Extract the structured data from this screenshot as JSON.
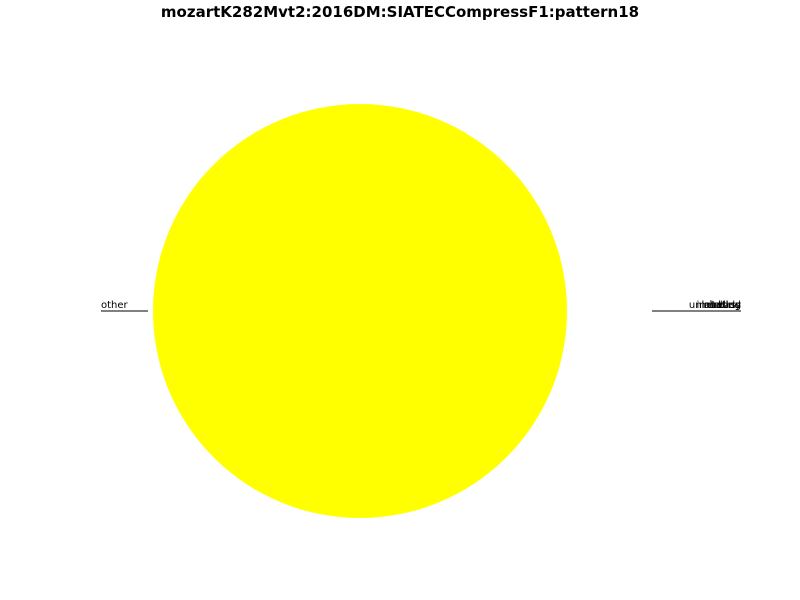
{
  "chart_data": {
    "type": "pie",
    "title": "mozartK282Mvt2:2016DM:SIATECCompressF1:pattern18",
    "slices": [
      {
        "label": "other",
        "value": 100,
        "color": "#ffff00",
        "side": "left"
      },
      {
        "label": "bass",
        "value": 0,
        "color": "#ffff00",
        "side": "right"
      },
      {
        "label": "imitation",
        "value": 0,
        "color": "#ffff00",
        "side": "right"
      },
      {
        "label": "ending",
        "value": 0,
        "color": "#ffff00",
        "side": "right"
      },
      {
        "label": "melody",
        "value": 0,
        "color": "#ffff00",
        "side": "right"
      },
      {
        "label": "unlabelled",
        "value": 0,
        "color": "#ffff00",
        "side": "right"
      }
    ]
  }
}
